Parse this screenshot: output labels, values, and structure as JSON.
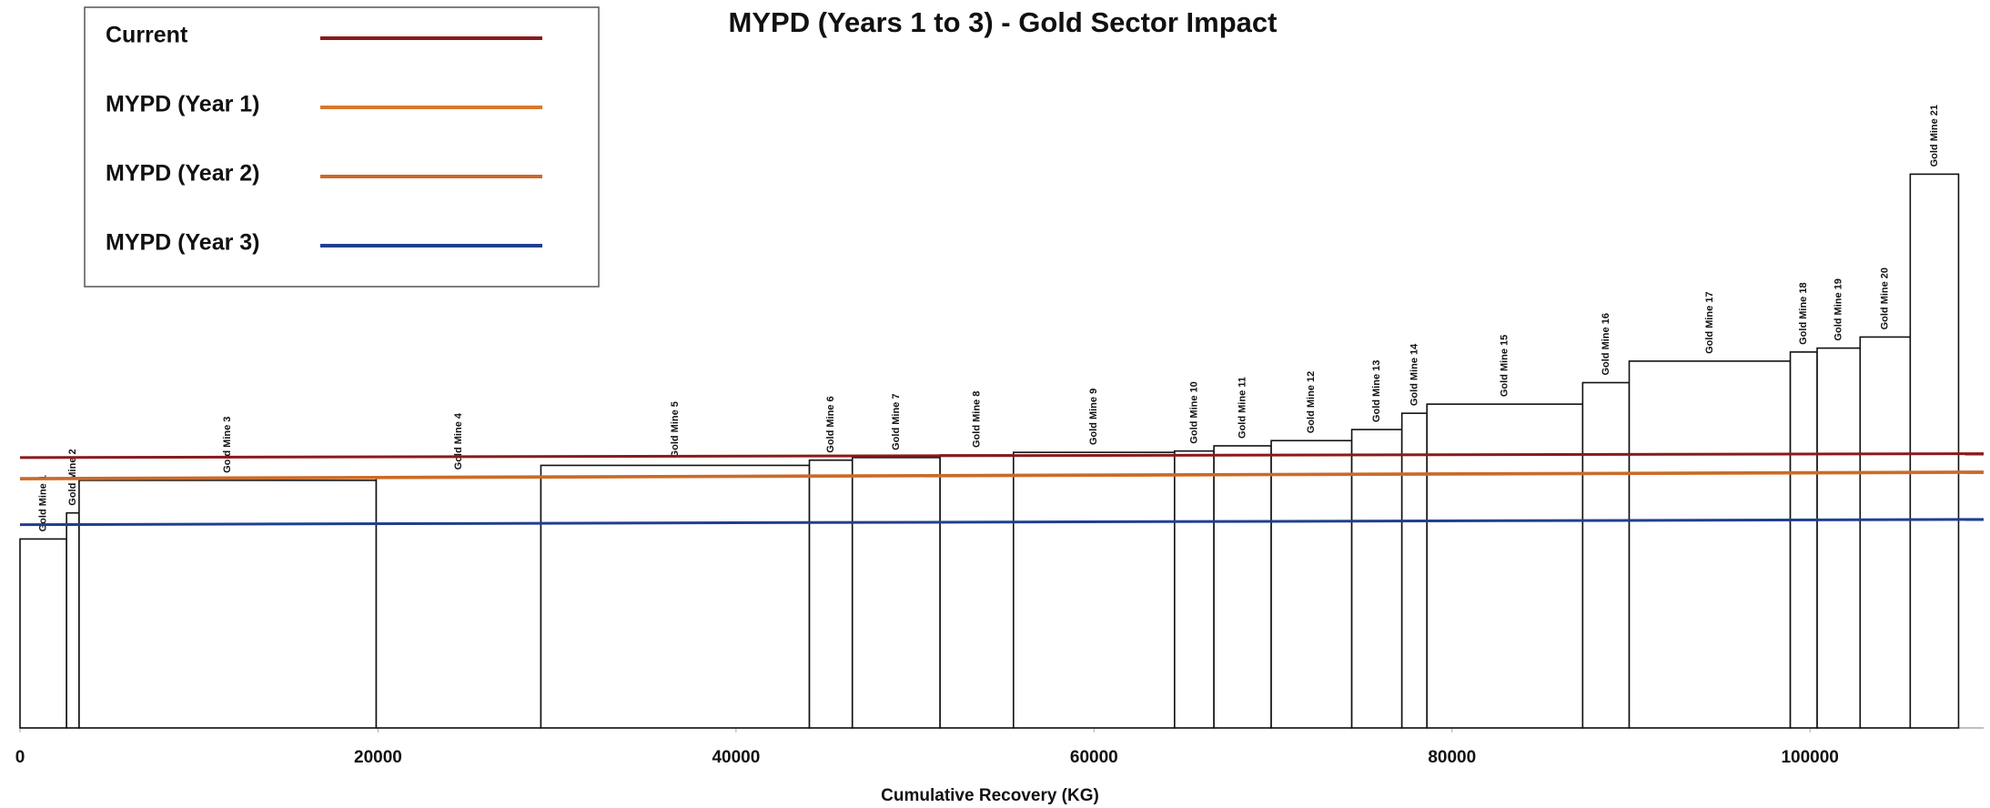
{
  "chart_data": {
    "type": "bar",
    "title": "MYPD (Years 1 to 3) - Gold Sector Impact",
    "x_label": "Cumulative Recovery (KG)",
    "categories": [
      "Gold Mine 1",
      "Gold Mine 2",
      "Gold Mine 3",
      "Gold Mine 4",
      "Gold Mine 5",
      "Gold Mine 6",
      "Gold Mine 7",
      "Gold Mine 8",
      "Gold Mine 9",
      "Gold Mine 10",
      "Gold Mine 11",
      "Gold Mine 12",
      "Gold Mine 13",
      "Gold Mine 14",
      "Gold Mine 15",
      "Gold Mine 16",
      "Gold Mine 17",
      "Gold Mine 18",
      "Gold Mine 19",
      "Gold Mine 20",
      "Gold Mine 21"
    ],
    "bins": [
      0,
      2600,
      3300,
      19900,
      29100,
      44100,
      46500,
      51400,
      55500,
      64500,
      66700,
      69900,
      74400,
      77200,
      78600,
      87300,
      89900,
      98900,
      100400,
      102800,
      105600,
      108300
    ],
    "values": [
      29,
      33,
      38,
      38.5,
      40.3,
      41.1,
      41.5,
      41.9,
      42.3,
      42.5,
      43.3,
      44.1,
      45.8,
      48.3,
      49.7,
      53,
      56.3,
      57.7,
      58.3,
      60,
      85
    ],
    "bar_color": "#ffffff",
    "x": [
      0,
      109700
    ],
    "series": [
      {
        "name": "Current",
        "color": "#8b1a1a",
        "values": [
          41.5,
          42.1
        ]
      },
      {
        "name": "MYPD (Year 1)",
        "color": "#d9772b",
        "values": [
          38.2,
          39.2
        ]
      },
      {
        "name": "MYPD (Year 2)",
        "color": "#c96a2a",
        "values": [
          38.3,
          39.3
        ]
      },
      {
        "name": "MYPD (Year 3)",
        "color": "#1f3f8f",
        "values": [
          31.2,
          32.0
        ]
      }
    ],
    "xlim": [
      0,
      109700
    ],
    "ylim": [
      0,
      100
    ],
    "xticks": [
      0,
      20000,
      40000,
      60000,
      80000,
      100000
    ],
    "legend": "top-left"
  }
}
